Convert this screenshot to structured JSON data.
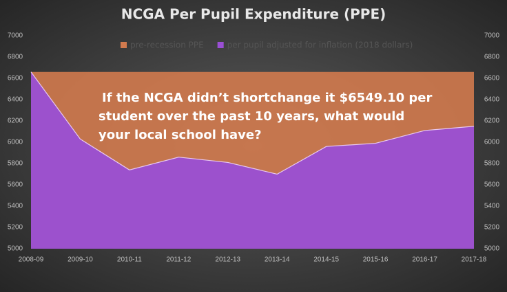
{
  "chart_data": {
    "type": "area",
    "title": "NCGA Per Pupil Expenditure (PPE)",
    "categories": [
      "2008-09",
      "2009-10",
      "2010-11",
      "2011-12",
      "2012-13",
      "2013-14",
      "2014-15",
      "2015-16",
      "2016-17",
      "2017-18"
    ],
    "series": [
      {
        "name": "pre-recession PPE",
        "color": "#d17a4e",
        "values": [
          6660,
          6660,
          6660,
          6660,
          6660,
          6660,
          6660,
          6660,
          6660,
          6660
        ]
      },
      {
        "name": "per pupil adjusted for inflation (2018 dollars)",
        "color": "#9a4fd4",
        "values": [
          6660,
          6030,
          5740,
          5860,
          5810,
          5700,
          5960,
          5990,
          6110,
          6150
        ]
      }
    ],
    "ylim": [
      5000,
      7000
    ],
    "yticks": [
      5000,
      5200,
      5400,
      5600,
      5800,
      6000,
      6200,
      6400,
      6600,
      6800,
      7000
    ],
    "y2lim": [
      5000,
      7000
    ],
    "y2ticks": [
      5000,
      5200,
      5400,
      5600,
      5800,
      6000,
      6200,
      6400,
      6600,
      6800,
      7000
    ],
    "legend": "top",
    "annotations": [
      "If the NCGA didn’t shortchange it $6549.10 per",
      "student over the past 10 years, what would",
      "your local school have?"
    ]
  }
}
